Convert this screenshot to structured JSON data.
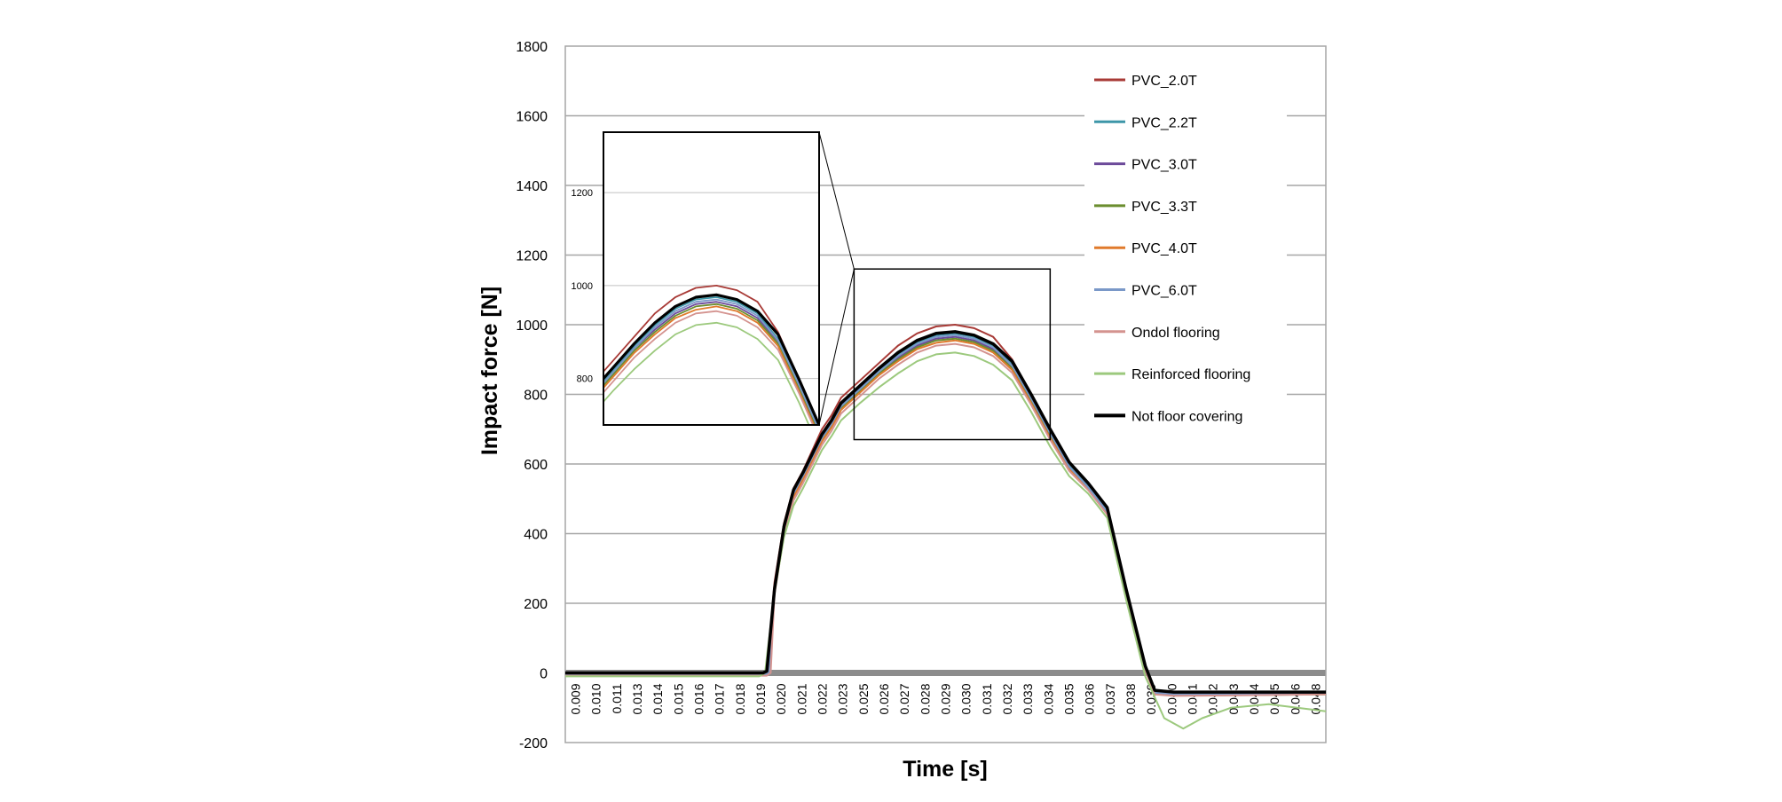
{
  "chart_data": {
    "type": "line",
    "xlabel": "Time [s]",
    "ylabel": "Impact force [N]",
    "xlim": [
      0.009,
      0.049
    ],
    "ylim": [
      -200,
      1800
    ],
    "y_ticks": [
      1800,
      1600,
      1400,
      1200,
      1000,
      800,
      600,
      400,
      200,
      0,
      -200
    ],
    "x_tick_labels": [
      "0.009",
      "0.010",
      "0.011",
      "0.013",
      "0.014",
      "0.015",
      "0.016",
      "0.017",
      "0.018",
      "0.019",
      "0.020",
      "0.021",
      "0.022",
      "0.023",
      "0.025",
      "0.026",
      "0.027",
      "0.028",
      "0.029",
      "0.030",
      "0.031",
      "0.032",
      "0.033",
      "0.034",
      "0.035",
      "0.036",
      "0.037",
      "0.038",
      "0.039",
      "0.040",
      "0.041",
      "0.042",
      "0.043",
      "0.044",
      "0.045",
      "0.046",
      "0.048"
    ],
    "grid": true,
    "legend_position": "top-right",
    "series": [
      {
        "name": "PVC_2.0T",
        "color": "#a83a36",
        "width": 2,
        "points": [
          [
            0.009,
            -5
          ],
          [
            0.0194,
            -5
          ],
          [
            0.0196,
            0
          ],
          [
            0.02,
            260
          ],
          [
            0.0205,
            430
          ],
          [
            0.021,
            530
          ],
          [
            0.0215,
            580
          ],
          [
            0.022,
            640
          ],
          [
            0.0225,
            700
          ],
          [
            0.023,
            740
          ],
          [
            0.0235,
            790
          ],
          [
            0.0245,
            840
          ],
          [
            0.0255,
            890
          ],
          [
            0.0265,
            940
          ],
          [
            0.0275,
            975
          ],
          [
            0.0285,
            995
          ],
          [
            0.0295,
            1000
          ],
          [
            0.0305,
            990
          ],
          [
            0.0315,
            965
          ],
          [
            0.0325,
            900
          ],
          [
            0.0335,
            800
          ],
          [
            0.0345,
            700
          ],
          [
            0.0355,
            600
          ],
          [
            0.0365,
            540
          ],
          [
            0.0375,
            470
          ],
          [
            0.0385,
            240
          ],
          [
            0.0395,
            20
          ],
          [
            0.04,
            -55
          ],
          [
            0.041,
            -60
          ],
          [
            0.049,
            -60
          ]
        ]
      },
      {
        "name": "PVC_2.2T",
        "color": "#3d96a8",
        "width": 2,
        "points": [
          [
            0.009,
            -5
          ],
          [
            0.0195,
            -5
          ],
          [
            0.0197,
            0
          ],
          [
            0.02,
            240
          ],
          [
            0.0205,
            420
          ],
          [
            0.021,
            520
          ],
          [
            0.0215,
            570
          ],
          [
            0.022,
            625
          ],
          [
            0.0225,
            680
          ],
          [
            0.023,
            720
          ],
          [
            0.0235,
            770
          ],
          [
            0.0245,
            820
          ],
          [
            0.0255,
            870
          ],
          [
            0.0265,
            915
          ],
          [
            0.0275,
            950
          ],
          [
            0.0285,
            970
          ],
          [
            0.0295,
            975
          ],
          [
            0.0305,
            965
          ],
          [
            0.0315,
            940
          ],
          [
            0.0325,
            885
          ],
          [
            0.0335,
            790
          ],
          [
            0.0345,
            690
          ],
          [
            0.0355,
            595
          ],
          [
            0.0365,
            535
          ],
          [
            0.0375,
            465
          ],
          [
            0.0385,
            230
          ],
          [
            0.0395,
            15
          ],
          [
            0.04,
            -55
          ],
          [
            0.041,
            -60
          ],
          [
            0.049,
            -60
          ]
        ]
      },
      {
        "name": "PVC_3.0T",
        "color": "#6c4a9a",
        "width": 2,
        "points": [
          [
            0.009,
            -5
          ],
          [
            0.0195,
            -5
          ],
          [
            0.0197,
            0
          ],
          [
            0.02,
            240
          ],
          [
            0.0205,
            415
          ],
          [
            0.021,
            515
          ],
          [
            0.0215,
            565
          ],
          [
            0.022,
            620
          ],
          [
            0.0225,
            675
          ],
          [
            0.023,
            715
          ],
          [
            0.0235,
            765
          ],
          [
            0.0245,
            815
          ],
          [
            0.0255,
            865
          ],
          [
            0.0265,
            905
          ],
          [
            0.0275,
            940
          ],
          [
            0.0285,
            960
          ],
          [
            0.0295,
            965
          ],
          [
            0.0305,
            955
          ],
          [
            0.0315,
            930
          ],
          [
            0.0325,
            880
          ],
          [
            0.0335,
            785
          ],
          [
            0.0345,
            685
          ],
          [
            0.0355,
            590
          ],
          [
            0.0365,
            532
          ],
          [
            0.0375,
            462
          ],
          [
            0.0385,
            228
          ],
          [
            0.0395,
            12
          ],
          [
            0.04,
            -58
          ],
          [
            0.041,
            -62
          ],
          [
            0.049,
            -60
          ]
        ]
      },
      {
        "name": "PVC_3.3T",
        "color": "#6b8e2f",
        "width": 2,
        "points": [
          [
            0.009,
            -5
          ],
          [
            0.0193,
            -5
          ],
          [
            0.0196,
            0
          ],
          [
            0.02,
            250
          ],
          [
            0.0205,
            420
          ],
          [
            0.021,
            515
          ],
          [
            0.0215,
            560
          ],
          [
            0.022,
            615
          ],
          [
            0.0225,
            670
          ],
          [
            0.023,
            710
          ],
          [
            0.0235,
            760
          ],
          [
            0.0245,
            810
          ],
          [
            0.0255,
            860
          ],
          [
            0.0265,
            900
          ],
          [
            0.0275,
            935
          ],
          [
            0.0285,
            955
          ],
          [
            0.0295,
            960
          ],
          [
            0.0305,
            950
          ],
          [
            0.0315,
            925
          ],
          [
            0.0325,
            875
          ],
          [
            0.0335,
            780
          ],
          [
            0.0345,
            680
          ],
          [
            0.0355,
            585
          ],
          [
            0.0365,
            530
          ],
          [
            0.0375,
            460
          ],
          [
            0.0385,
            225
          ],
          [
            0.0395,
            10
          ],
          [
            0.04,
            -60
          ],
          [
            0.041,
            -65
          ],
          [
            0.049,
            -62
          ]
        ]
      },
      {
        "name": "PVC_4.0T",
        "color": "#e07a2c",
        "width": 2,
        "points": [
          [
            0.009,
            -5
          ],
          [
            0.0195,
            -5
          ],
          [
            0.0197,
            0
          ],
          [
            0.02,
            235
          ],
          [
            0.0205,
            405
          ],
          [
            0.021,
            505
          ],
          [
            0.0215,
            555
          ],
          [
            0.022,
            610
          ],
          [
            0.0225,
            665
          ],
          [
            0.023,
            705
          ],
          [
            0.0235,
            755
          ],
          [
            0.0245,
            805
          ],
          [
            0.0255,
            855
          ],
          [
            0.0265,
            895
          ],
          [
            0.0275,
            930
          ],
          [
            0.0285,
            948
          ],
          [
            0.0295,
            955
          ],
          [
            0.0305,
            945
          ],
          [
            0.0315,
            920
          ],
          [
            0.0325,
            870
          ],
          [
            0.0335,
            775
          ],
          [
            0.0345,
            675
          ],
          [
            0.0355,
            585
          ],
          [
            0.0365,
            528
          ],
          [
            0.0375,
            458
          ],
          [
            0.0385,
            225
          ],
          [
            0.0395,
            10
          ],
          [
            0.04,
            -60
          ],
          [
            0.041,
            -63
          ],
          [
            0.049,
            -60
          ]
        ]
      },
      {
        "name": "PVC_6.0T",
        "color": "#7a98c8",
        "width": 2,
        "points": [
          [
            0.009,
            -5
          ],
          [
            0.0195,
            -5
          ],
          [
            0.0197,
            0
          ],
          [
            0.02,
            240
          ],
          [
            0.0205,
            415
          ],
          [
            0.021,
            515
          ],
          [
            0.0215,
            565
          ],
          [
            0.022,
            620
          ],
          [
            0.0225,
            675
          ],
          [
            0.023,
            715
          ],
          [
            0.0235,
            765
          ],
          [
            0.0245,
            815
          ],
          [
            0.0255,
            865
          ],
          [
            0.0265,
            910
          ],
          [
            0.0275,
            945
          ],
          [
            0.0285,
            965
          ],
          [
            0.0295,
            970
          ],
          [
            0.0305,
            960
          ],
          [
            0.0315,
            935
          ],
          [
            0.0325,
            882
          ],
          [
            0.0335,
            788
          ],
          [
            0.0345,
            688
          ],
          [
            0.0355,
            592
          ],
          [
            0.0365,
            533
          ],
          [
            0.0375,
            463
          ],
          [
            0.0385,
            229
          ],
          [
            0.0395,
            13
          ],
          [
            0.04,
            -57
          ],
          [
            0.041,
            -61
          ],
          [
            0.049,
            -60
          ]
        ]
      },
      {
        "name": "Ondol flooring",
        "color": "#d4938f",
        "width": 2,
        "points": [
          [
            0.009,
            -8
          ],
          [
            0.0196,
            -8
          ],
          [
            0.0198,
            0
          ],
          [
            0.02,
            225
          ],
          [
            0.0205,
            395
          ],
          [
            0.021,
            495
          ],
          [
            0.0215,
            545
          ],
          [
            0.022,
            600
          ],
          [
            0.0225,
            655
          ],
          [
            0.023,
            695
          ],
          [
            0.0235,
            745
          ],
          [
            0.0245,
            795
          ],
          [
            0.0255,
            845
          ],
          [
            0.0265,
            885
          ],
          [
            0.0275,
            920
          ],
          [
            0.0285,
            940
          ],
          [
            0.0295,
            945
          ],
          [
            0.0305,
            935
          ],
          [
            0.0315,
            910
          ],
          [
            0.0325,
            862
          ],
          [
            0.0335,
            770
          ],
          [
            0.0345,
            670
          ],
          [
            0.0355,
            580
          ],
          [
            0.0365,
            525
          ],
          [
            0.0375,
            455
          ],
          [
            0.0385,
            222
          ],
          [
            0.0395,
            8
          ],
          [
            0.04,
            -62
          ],
          [
            0.041,
            -66
          ],
          [
            0.049,
            -62
          ]
        ]
      },
      {
        "name": "Reinforced flooring",
        "color": "#9cc97d",
        "width": 2,
        "points": [
          [
            0.009,
            -10
          ],
          [
            0.0192,
            -10
          ],
          [
            0.0195,
            0
          ],
          [
            0.02,
            230
          ],
          [
            0.0205,
            390
          ],
          [
            0.021,
            480
          ],
          [
            0.0215,
            530
          ],
          [
            0.022,
            585
          ],
          [
            0.0225,
            640
          ],
          [
            0.023,
            680
          ],
          [
            0.0235,
            725
          ],
          [
            0.0245,
            775
          ],
          [
            0.0255,
            820
          ],
          [
            0.0265,
            860
          ],
          [
            0.0275,
            895
          ],
          [
            0.0285,
            915
          ],
          [
            0.0295,
            920
          ],
          [
            0.0305,
            910
          ],
          [
            0.0315,
            885
          ],
          [
            0.0325,
            840
          ],
          [
            0.0335,
            750
          ],
          [
            0.0345,
            650
          ],
          [
            0.0355,
            565
          ],
          [
            0.0365,
            515
          ],
          [
            0.0375,
            445
          ],
          [
            0.0385,
            210
          ],
          [
            0.0395,
            -10
          ],
          [
            0.0405,
            -130
          ],
          [
            0.0415,
            -160
          ],
          [
            0.0425,
            -130
          ],
          [
            0.044,
            -100
          ],
          [
            0.046,
            -90
          ],
          [
            0.049,
            -110
          ]
        ]
      },
      {
        "name": "Not floor covering",
        "color": "#000000",
        "width": 3.5,
        "points": [
          [
            0.009,
            0
          ],
          [
            0.0194,
            0
          ],
          [
            0.0196,
            5
          ],
          [
            0.02,
            240
          ],
          [
            0.0205,
            420
          ],
          [
            0.021,
            525
          ],
          [
            0.0215,
            575
          ],
          [
            0.022,
            630
          ],
          [
            0.0225,
            685
          ],
          [
            0.023,
            725
          ],
          [
            0.0235,
            775
          ],
          [
            0.0245,
            825
          ],
          [
            0.0255,
            875
          ],
          [
            0.0265,
            920
          ],
          [
            0.0275,
            955
          ],
          [
            0.0285,
            975
          ],
          [
            0.0295,
            980
          ],
          [
            0.0305,
            970
          ],
          [
            0.0315,
            945
          ],
          [
            0.0325,
            895
          ],
          [
            0.0335,
            800
          ],
          [
            0.0345,
            700
          ],
          [
            0.0355,
            605
          ],
          [
            0.0365,
            545
          ],
          [
            0.0375,
            475
          ],
          [
            0.0385,
            240
          ],
          [
            0.0395,
            20
          ],
          [
            0.04,
            -50
          ],
          [
            0.041,
            -55
          ],
          [
            0.049,
            -55
          ]
        ]
      }
    ],
    "inset": {
      "xlim": [
        0.024,
        0.0345
      ],
      "ylim": [
        700,
        1330
      ],
      "y_ticks": [
        1200,
        1000,
        800
      ]
    }
  }
}
